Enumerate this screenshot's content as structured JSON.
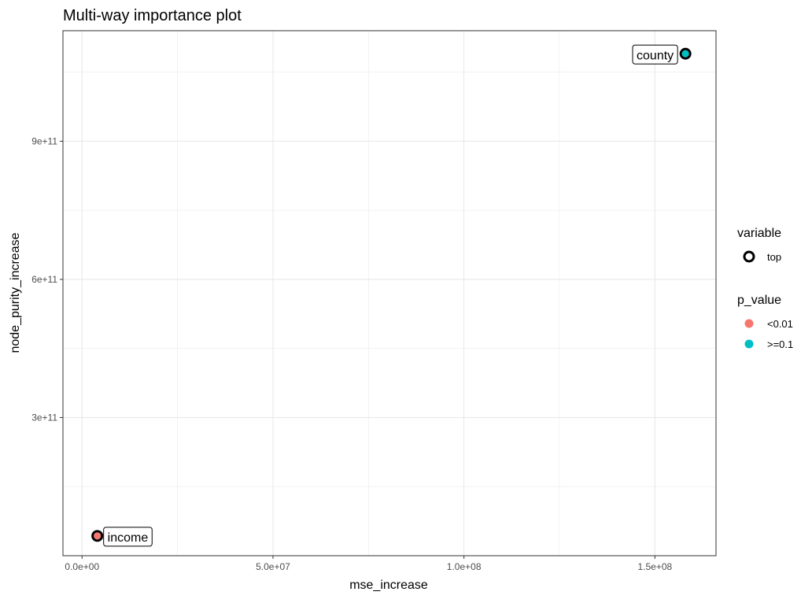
{
  "chart_data": {
    "type": "scatter",
    "title": "Multi-way importance plot",
    "xlabel": "mse_increase",
    "ylabel": "node_purity_increase",
    "xlim": [
      -5000000,
      166000000
    ],
    "ylim": [
      0,
      1140000000000
    ],
    "x_ticks": [
      0,
      50000000,
      100000000,
      150000000
    ],
    "x_tick_labels": [
      "0.0e+00",
      "5.0e+07",
      "1.0e+08",
      "1.5e+08"
    ],
    "y_ticks": [
      300000000000,
      600000000000,
      900000000000
    ],
    "y_tick_labels": [
      "3e+11",
      "6e+11",
      "9e+11"
    ],
    "grid": true,
    "legend_position": "right",
    "legends": [
      {
        "title": "variable",
        "entries": [
          {
            "label": "top",
            "shape": "ring",
            "color": "#000000"
          }
        ]
      },
      {
        "title": "p_value",
        "entries": [
          {
            "label": "<0.01",
            "shape": "dot",
            "color": "#F8766D"
          },
          {
            "label": ">=0.1",
            "shape": "dot",
            "color": "#00BFC4"
          }
        ]
      }
    ],
    "points": [
      {
        "label": "county",
        "x": 158000000,
        "y": 1090000000000,
        "p_value": ">=0.1",
        "color": "#00BFC4",
        "variable": "top"
      },
      {
        "label": "income",
        "x": 4000000,
        "y": 43000000000,
        "p_value": "<0.01",
        "color": "#F8766D",
        "variable": "top"
      }
    ]
  }
}
